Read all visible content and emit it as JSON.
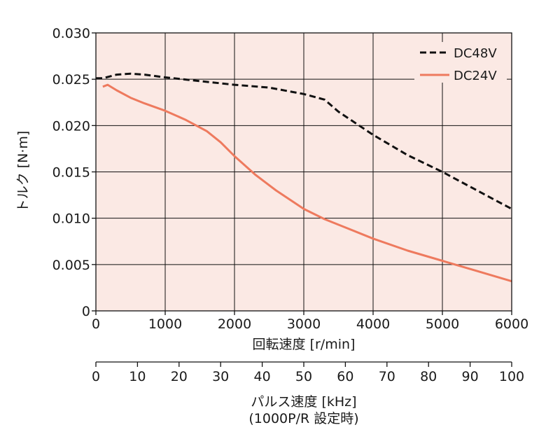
{
  "chart_data": {
    "type": "line",
    "xlabel": "回転速度 [r/min]",
    "ylabel": "トルク [N·m]",
    "xlim": [
      0,
      6000
    ],
    "ylim": [
      0,
      0.03
    ],
    "x_ticks": [
      "0",
      "1000",
      "2000",
      "3000",
      "4000",
      "5000",
      "6000"
    ],
    "y_ticks": [
      "0",
      "0.005",
      "0.010",
      "0.015",
      "0.020",
      "0.025",
      "0.030"
    ],
    "grid": true,
    "legend_position": "top-right",
    "plot_background": "#fbe9e4",
    "secondary_x_axis": {
      "label_line1": "パルス速度 [kHz]",
      "label_line2": "(1000P/R 設定時)",
      "range": [
        0,
        100
      ],
      "ticks": [
        "0",
        "10",
        "20",
        "30",
        "40",
        "50",
        "60",
        "70",
        "80",
        "90",
        "100"
      ]
    },
    "series": [
      {
        "name": "DC48V",
        "color": "#111111",
        "style": "dashed",
        "points": [
          [
            0,
            0.0251
          ],
          [
            100,
            0.0251
          ],
          [
            200,
            0.0253
          ],
          [
            300,
            0.0255
          ],
          [
            500,
            0.0256
          ],
          [
            700,
            0.0255
          ],
          [
            1000,
            0.0252
          ],
          [
            1500,
            0.0248
          ],
          [
            2000,
            0.0244
          ],
          [
            2500,
            0.0241
          ],
          [
            3000,
            0.0234
          ],
          [
            3300,
            0.0228
          ],
          [
            3500,
            0.0215
          ],
          [
            4000,
            0.019
          ],
          [
            4500,
            0.0168
          ],
          [
            5000,
            0.015
          ],
          [
            5500,
            0.013
          ],
          [
            6000,
            0.011
          ]
        ]
      },
      {
        "name": "DC24V",
        "color": "#ee7a5e",
        "style": "solid",
        "points": [
          [
            100,
            0.0242
          ],
          [
            170,
            0.0244
          ],
          [
            300,
            0.0238
          ],
          [
            500,
            0.023
          ],
          [
            700,
            0.0224
          ],
          [
            1000,
            0.0216
          ],
          [
            1300,
            0.0206
          ],
          [
            1600,
            0.0194
          ],
          [
            1800,
            0.0182
          ],
          [
            2000,
            0.0167
          ],
          [
            2300,
            0.0147
          ],
          [
            2600,
            0.013
          ],
          [
            3000,
            0.011
          ],
          [
            3300,
            0.0099
          ],
          [
            3600,
            0.009
          ],
          [
            4000,
            0.0078
          ],
          [
            4500,
            0.0065
          ],
          [
            5000,
            0.0054
          ],
          [
            5500,
            0.0043
          ],
          [
            6000,
            0.0032
          ]
        ]
      }
    ]
  }
}
